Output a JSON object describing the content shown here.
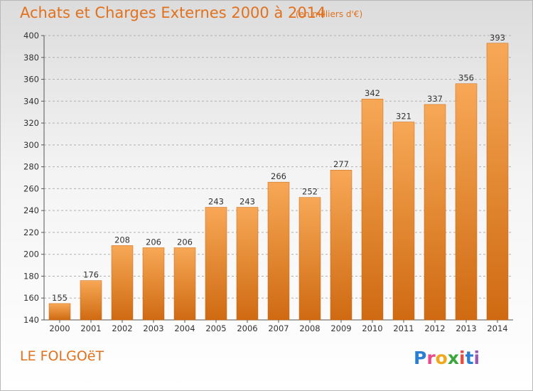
{
  "header": {
    "title": "Achats et Charges Externes 2000 à 2014",
    "subtitle": "(en milliers d'€)"
  },
  "footer": {
    "place": "LE FOLGOëT",
    "logo": "Proxiti"
  },
  "colors": {
    "accent": "#e2711d",
    "bar_top": "#f7a856",
    "bar_bottom": "#cf6a12",
    "grid": "#b0b0b0"
  },
  "chart_data": {
    "type": "bar",
    "title": "Achats et Charges Externes 2000 à 2014",
    "subtitle": "(en milliers d'€)",
    "xlabel": "",
    "ylabel": "",
    "categories": [
      "2000",
      "2001",
      "2002",
      "2003",
      "2004",
      "2005",
      "2006",
      "2007",
      "2008",
      "2009",
      "2010",
      "2011",
      "2012",
      "2013",
      "2014"
    ],
    "values": [
      155,
      176,
      208,
      206,
      206,
      243,
      243,
      266,
      252,
      277,
      342,
      321,
      337,
      356,
      393
    ],
    "ylim": [
      140,
      400
    ],
    "yticks": [
      140,
      160,
      180,
      200,
      220,
      240,
      260,
      280,
      300,
      320,
      340,
      360,
      380,
      400
    ],
    "grid": true,
    "legend": "none"
  }
}
